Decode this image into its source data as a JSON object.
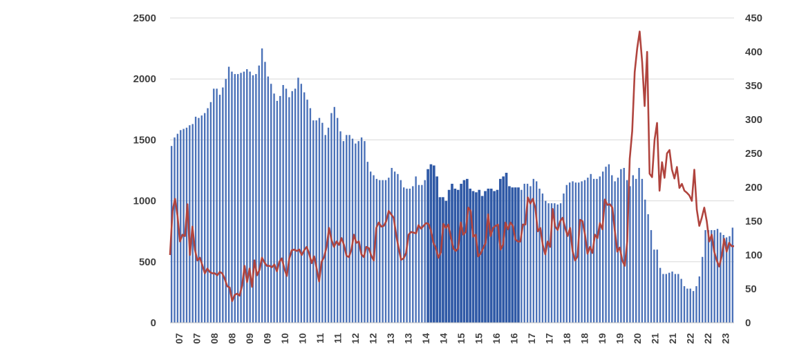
{
  "chart_data": {
    "type": "bar",
    "title": "",
    "xlabel": "",
    "ylabel": "",
    "y2label": "",
    "grid": true,
    "legend": "none",
    "x_tick_labels": [
      "07",
      "07",
      "08",
      "08",
      "09",
      "09",
      "10",
      "10",
      "11",
      "11",
      "12",
      "12",
      "13",
      "13",
      "14",
      "14",
      "15",
      "15",
      "16",
      "16",
      "17",
      "17",
      "18",
      "18",
      "19",
      "19",
      "20",
      "21",
      "21",
      "22",
      "22",
      "23"
    ],
    "ylim": [
      0,
      2500
    ],
    "y_ticks": [
      0,
      500,
      1000,
      1500,
      2000,
      2500
    ],
    "y2lim": [
      0,
      450
    ],
    "y2_ticks": [
      0,
      50,
      100,
      150,
      200,
      250,
      300,
      350,
      400,
      450
    ],
    "colors": {
      "bars": "#4a71b8",
      "bars_highlight": "#2f59a6",
      "line": "#b0443e",
      "grid": "#d9d9d9",
      "text": "#404040"
    },
    "highlight_range": [
      "14",
      "16"
    ],
    "series": [
      {
        "axis": "left",
        "kind": "bar",
        "values": [
          1450,
          1520,
          1550,
          1580,
          1590,
          1600,
          1620,
          1630,
          1690,
          1680,
          1700,
          1720,
          1760,
          1810,
          1920,
          1920,
          1870,
          1930,
          2000,
          2100,
          2060,
          2040,
          2040,
          2050,
          2060,
          2080,
          2060,
          2030,
          2040,
          2110,
          2250,
          2140,
          2020,
          1960,
          1880,
          1820,
          1860,
          1950,
          1920,
          1850,
          1900,
          1920,
          2010,
          1960,
          1890,
          1830,
          1760,
          1660,
          1660,
          1680,
          1640,
          1540,
          1600,
          1720,
          1770,
          1680,
          1570,
          1490,
          1540,
          1540,
          1510,
          1470,
          1490,
          1520,
          1490,
          1320,
          1240,
          1210,
          1180,
          1170,
          1170,
          1170,
          1190,
          1270,
          1240,
          1220,
          1170,
          1110,
          1100,
          1100,
          1120,
          1200,
          1130,
          1130,
          1170,
          1260,
          1300,
          1290,
          1200,
          1030,
          1030,
          1000,
          1090,
          1140,
          1100,
          1090,
          1140,
          1170,
          1180,
          1100,
          1080,
          1070,
          1090,
          1040,
          1080,
          1100,
          1100,
          1080,
          1090,
          1180,
          1200,
          1230,
          1120,
          1110,
          1110,
          1110,
          1090,
          1140,
          1140,
          1120,
          1180,
          1160,
          1100,
          1060,
          1000,
          980,
          980,
          980,
          970,
          980,
          1060,
          1130,
          1150,
          1160,
          1150,
          1150,
          1160,
          1170,
          1190,
          1220,
          1180,
          1180,
          1200,
          1240,
          1280,
          1300,
          1210,
          1160,
          1190,
          1260,
          1270,
          1170,
          1120,
          1210,
          1180,
          1270,
          1180,
          1010,
          890,
          760,
          600,
          600,
          450,
          400,
          400,
          410,
          420,
          400,
          400,
          360,
          300,
          280,
          280,
          260,
          300,
          380,
          540,
          760,
          760,
          760,
          760,
          770,
          740,
          720,
          700,
          710,
          780
        ]
      },
      {
        "axis": "right",
        "kind": "line",
        "values": [
          100,
          165,
          183,
          158,
          120,
          130,
          128,
          175,
          100,
          142,
          108,
          92,
          96,
          85,
          73,
          80,
          75,
          73,
          73,
          70,
          75,
          73,
          65,
          54,
          52,
          32,
          41,
          43,
          40,
          55,
          84,
          60,
          80,
          53,
          92,
          70,
          78,
          96,
          89,
          84,
          84,
          82,
          86,
          76,
          90,
          95,
          80,
          69,
          95,
          107,
          108,
          106,
          108,
          100,
          107,
          112,
          102,
          88,
          98,
          80,
          61,
          90,
          97,
          112,
          140,
          122,
          112,
          120,
          115,
          125,
          115,
          99,
          97,
          108,
          130,
          118,
          120,
          101,
          97,
          112,
          110,
          99,
          92,
          140,
          148,
          142,
          143,
          150,
          165,
          160,
          155,
          130,
          110,
          93,
          95,
          103,
          130,
          134,
          133,
          132,
          144,
          139,
          143,
          147,
          146,
          136,
          118,
          110,
          96,
          104,
          146,
          140,
          145,
          127,
          110,
          106,
          110,
          148,
          130,
          134,
          170,
          165,
          127,
          130,
          98,
          102,
          110,
          118,
          160,
          128,
          140,
          143,
          145,
          108,
          115,
          148,
          138,
          148,
          143,
          123,
          120,
          120,
          145,
          145,
          185,
          176,
          183,
          170,
          135,
          140,
          115,
          101,
          120,
          112,
          168,
          142,
          137,
          150,
          155,
          140,
          128,
          140,
          106,
          92,
          98,
          152,
          150,
          130,
          102,
          112,
          103,
          130,
          125,
          147,
          138,
          182,
          174,
          175,
          170,
          136,
          105,
          111,
          92,
          84,
          120,
          242,
          283,
          370,
          405,
          430,
          385,
          320,
          400,
          220,
          215,
          270,
          295,
          195,
          237,
          214,
          250,
          255,
          226,
          213,
          230,
          199,
          205,
          195,
          192,
          188,
          180,
          226,
          167,
          143,
          155,
          170,
          150,
          120,
          130,
          105,
          92,
          83,
          98,
          124,
          105,
          118,
          113,
          113
        ]
      }
    ]
  }
}
